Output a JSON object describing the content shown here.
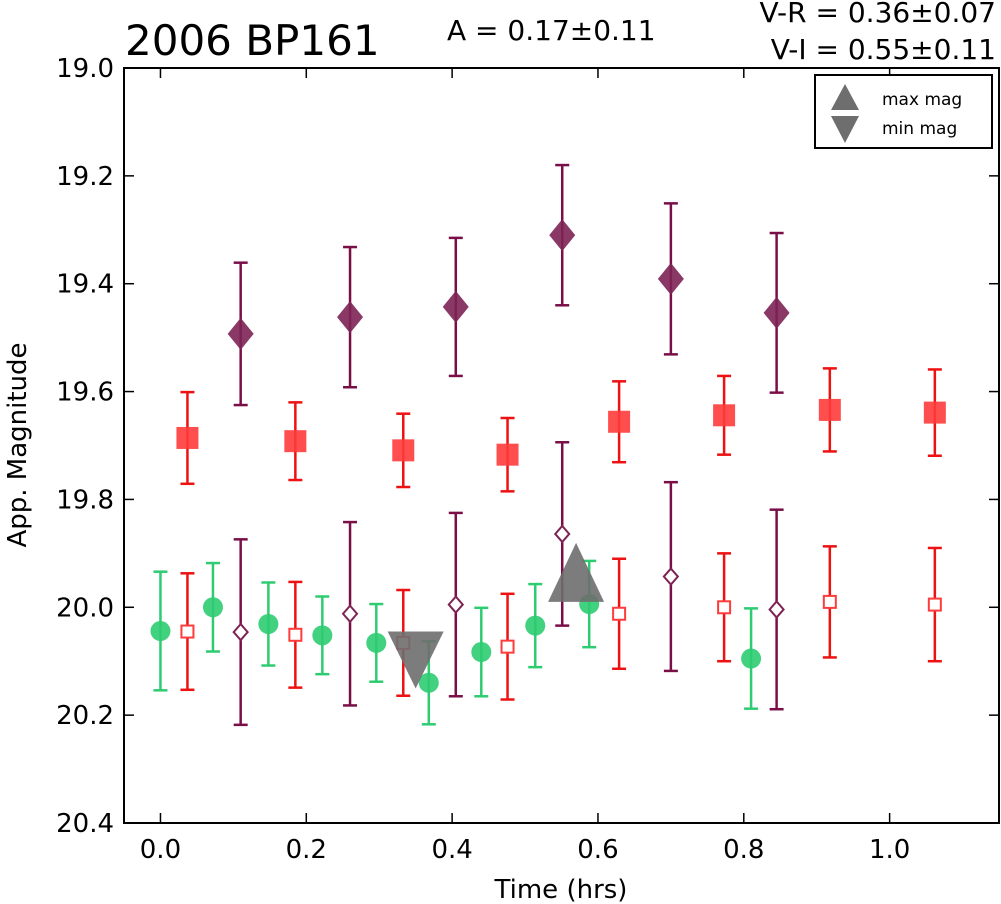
{
  "chart_data": {
    "type": "scatter",
    "title": "2006 BP161",
    "annotations": {
      "amplitude": "A  = 0.17±0.11",
      "v_r": "V-R = 0.36±0.07",
      "v_i": "V-I  = 0.55±0.11"
    },
    "xlabel": "Time (hrs)",
    "ylabel": "App. Magnitude",
    "xlim": [
      -0.05,
      1.15
    ],
    "ylim": [
      20.4,
      19.0
    ],
    "y_inverted": true,
    "xticks": [
      "0.0",
      "0.2",
      "0.4",
      "0.6",
      "0.8",
      "1.0"
    ],
    "yticks": [
      "19.0",
      "19.2",
      "19.4",
      "19.6",
      "19.8",
      "20.0",
      "20.2",
      "20.4"
    ],
    "legend": {
      "placement": "top-right",
      "entries": [
        {
          "label": "max mag",
          "marker": "triangle-up",
          "color": "#7f7f7f"
        },
        {
          "label": "min mag",
          "marker": "triangle-down",
          "color": "#7f7f7f"
        }
      ]
    },
    "colors": {
      "green": "#2ecc71",
      "red": "#ff3b3b",
      "purple": "#7d2455",
      "red_err": "#ee1111",
      "purple_err": "#7a0f47",
      "gray": "#6e6e6e"
    },
    "series": [
      {
        "marker": "square-filled",
        "color": "red",
        "x": [
          0.037,
          0.185,
          0.333,
          0.476,
          0.629,
          0.773,
          0.918,
          1.062
        ],
        "y": [
          19.686,
          19.692,
          19.709,
          19.717,
          19.656,
          19.644,
          19.634,
          19.639
        ],
        "err": [
          0.085,
          0.072,
          0.068,
          0.068,
          0.075,
          0.073,
          0.077,
          0.08
        ]
      },
      {
        "marker": "diamond-filled",
        "color": "purple",
        "x": [
          0.11,
          0.26,
          0.405,
          0.551,
          0.7,
          0.845
        ],
        "y": [
          19.493,
          19.462,
          19.443,
          19.31,
          19.391,
          19.454
        ],
        "err": [
          0.132,
          0.13,
          0.128,
          0.13,
          0.14,
          0.148
        ]
      },
      {
        "marker": "circle-filled",
        "color": "green",
        "x": [
          0.0,
          0.072,
          0.148,
          0.222,
          0.296,
          0.368,
          0.44,
          0.514,
          0.588,
          0.81
        ],
        "y": [
          20.044,
          20.0,
          20.031,
          20.052,
          20.066,
          20.14,
          20.083,
          20.034,
          19.994,
          20.095
        ],
        "err": [
          0.11,
          0.082,
          0.077,
          0.072,
          0.072,
          0.077,
          0.082,
          0.077,
          0.08,
          0.093
        ]
      },
      {
        "marker": "square-open",
        "color": "red",
        "x": [
          0.037,
          0.185,
          0.333,
          0.476,
          0.629,
          0.773,
          0.918,
          1.062
        ],
        "y": [
          20.045,
          20.051,
          20.066,
          20.073,
          20.012,
          20.0,
          19.99,
          19.995
        ],
        "err": [
          0.108,
          0.098,
          0.098,
          0.098,
          0.102,
          0.1,
          0.103,
          0.105
        ]
      },
      {
        "marker": "diamond-open",
        "color": "purple",
        "x": [
          0.11,
          0.26,
          0.405,
          0.551,
          0.7,
          0.845
        ],
        "y": [
          20.046,
          20.012,
          19.995,
          19.864,
          19.943,
          20.004
        ],
        "err": [
          0.172,
          0.17,
          0.17,
          0.17,
          0.175,
          0.185
        ]
      },
      {
        "marker": "triangle-up",
        "color": "gray",
        "x": [
          0.57
        ],
        "y": [
          19.94
        ],
        "err": []
      },
      {
        "marker": "triangle-down",
        "color": "gray",
        "x": [
          0.35
        ],
        "y": [
          20.095
        ],
        "err": []
      }
    ]
  }
}
